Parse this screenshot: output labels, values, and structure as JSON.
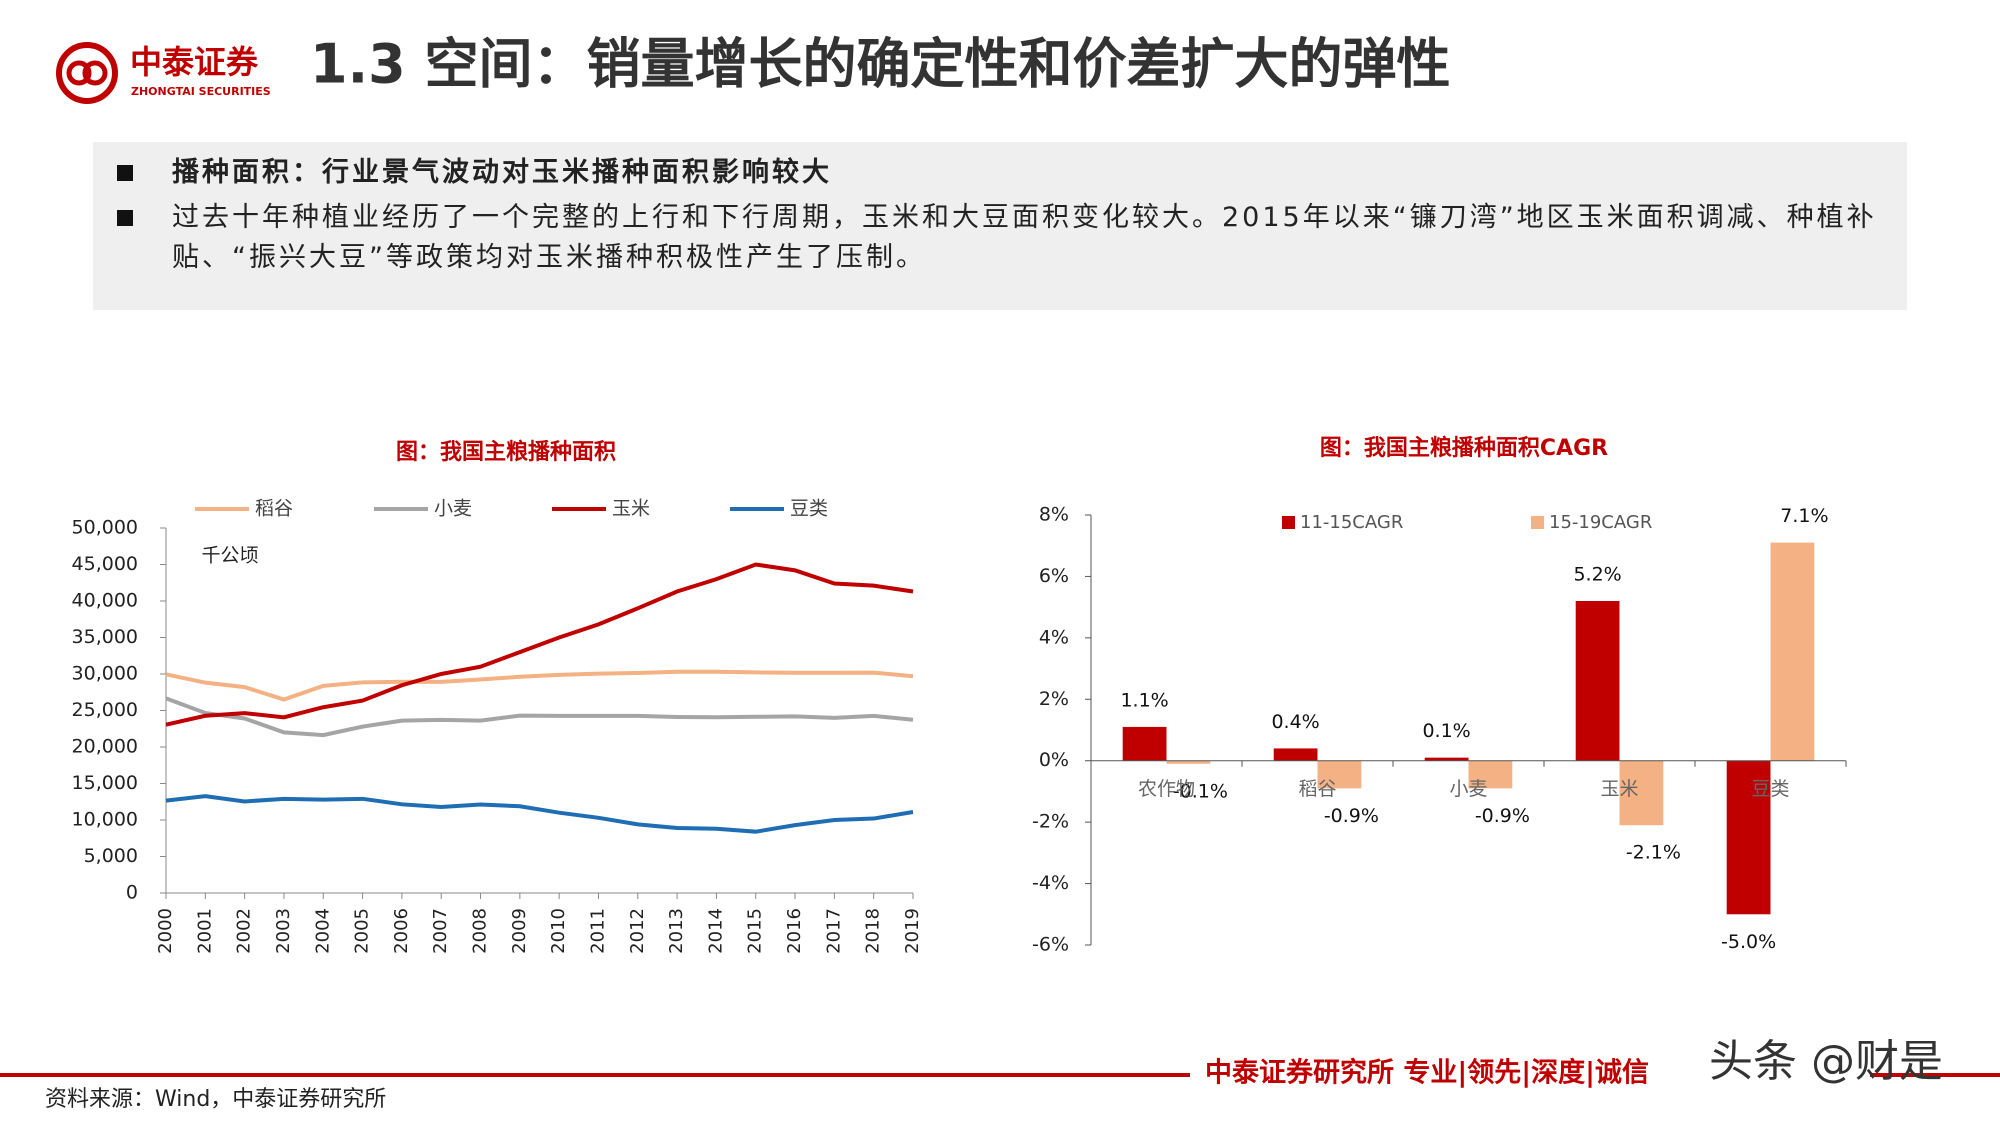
{
  "logo": {
    "name": "中泰证券",
    "name_en": "ZHONGTAI SECURITIES"
  },
  "header": {
    "title": "1.3 空间：销量增长的确定性和价差扩大的弹性"
  },
  "bullets": [
    "播种面积：行业景气波动对玉米播种面积影响较大",
    "过去十年种植业经历了一个完整的上行和下行周期，玉米和大豆面积变化较大。2015年以来“镰刀湾”地区玉米面积调减、种植补贴、“振兴大豆”等政策均对玉米播种积极性产生了压制。"
  ],
  "chart_data": [
    {
      "type": "line",
      "title": "图：我国主粮播种面积",
      "y_unit": "千公顷",
      "categories": [
        "2000",
        "2001",
        "2002",
        "2003",
        "2004",
        "2005",
        "2006",
        "2007",
        "2008",
        "2009",
        "2010",
        "2011",
        "2012",
        "2013",
        "2014",
        "2015",
        "2016",
        "2017",
        "2018",
        "2019"
      ],
      "series": [
        {
          "name": "稻谷",
          "color": "#f4b183",
          "values": [
            29962,
            28812,
            28202,
            26508,
            28379,
            28847,
            28938,
            28919,
            29241,
            29627,
            29873,
            30057,
            30137,
            30312,
            30310,
            30216,
            30178,
            30176,
            30189,
            29694
          ]
        },
        {
          "name": "小麦",
          "color": "#a5a5a5",
          "values": [
            26653,
            24664,
            23908,
            21997,
            21626,
            22793,
            23613,
            23721,
            23617,
            24291,
            24257,
            24270,
            24268,
            24117,
            24069,
            24141,
            24187,
            23988,
            24268,
            23727
          ]
        },
        {
          "name": "玉米",
          "color": "#c00000",
          "values": [
            23056,
            24282,
            24634,
            24068,
            25446,
            26358,
            28463,
            30000,
            31000,
            33000,
            35000,
            36800,
            39000,
            41300,
            43000,
            45000,
            44200,
            42400,
            42100,
            41300
          ]
        },
        {
          "name": "豆类",
          "color": "#1f6eb4",
          "values": [
            12660,
            13268,
            12543,
            12899,
            12799,
            12901,
            12149,
            11780,
            12118,
            11880,
            11000,
            10300,
            9400,
            8900,
            8800,
            8400,
            9300,
            10000,
            10200,
            11100
          ]
        }
      ],
      "ylim": [
        0,
        50000
      ],
      "yticks": [
        0,
        {
          "value": 5000,
          "label": "5,000"
        },
        {
          "value": 10000,
          "label": "10,000"
        },
        {
          "value": 15000,
          "label": "15,000"
        },
        {
          "value": 20000,
          "label": "20,000"
        },
        {
          "value": 25000,
          "label": "25,000"
        },
        {
          "value": 30000,
          "label": "30,000"
        },
        {
          "value": 35000,
          "label": "35,000"
        },
        {
          "value": 40000,
          "label": "40,000"
        },
        {
          "value": 45000,
          "label": "45,000"
        },
        {
          "value": 50000,
          "label": "50,000"
        }
      ]
    },
    {
      "type": "bar",
      "title": "图：我国主粮播种面积CAGR",
      "categories": [
        "农作物",
        "稻谷",
        "小麦",
        "玉米",
        "豆类"
      ],
      "series": [
        {
          "name": "11-15CAGR",
          "color": "#c00000",
          "values": [
            1.1,
            0.4,
            0.1,
            5.2,
            -5.0
          ],
          "value_labels": [
            "1.1%",
            "0.4%",
            "0.1%",
            "5.2%",
            "-5.0%"
          ]
        },
        {
          "name": "15-19CAGR",
          "color": "#f4b183",
          "values": [
            -0.1,
            -0.9,
            -0.9,
            -2.1,
            7.1
          ],
          "value_labels": [
            "-0.1%",
            "-0.9%",
            "-0.9%",
            "-2.1%",
            "7.1%"
          ]
        }
      ],
      "ylim": [
        -6,
        8
      ],
      "yticks": [
        {
          "value": -6,
          "label": "-6%"
        },
        {
          "value": -4,
          "label": "-4%"
        },
        {
          "value": -2,
          "label": "-2%"
        },
        {
          "value": 0,
          "label": "0%"
        },
        {
          "value": 2,
          "label": "2%"
        },
        {
          "value": 4,
          "label": "4%"
        },
        {
          "value": 6,
          "label": "6%"
        },
        {
          "value": 8,
          "label": "8%"
        }
      ]
    }
  ],
  "footer": {
    "slogan": "中泰证券研究所 专业|领先|深度|诚信",
    "source": "资料来源：Wind，中泰证券研究所",
    "watermark": "头条 @财是"
  }
}
